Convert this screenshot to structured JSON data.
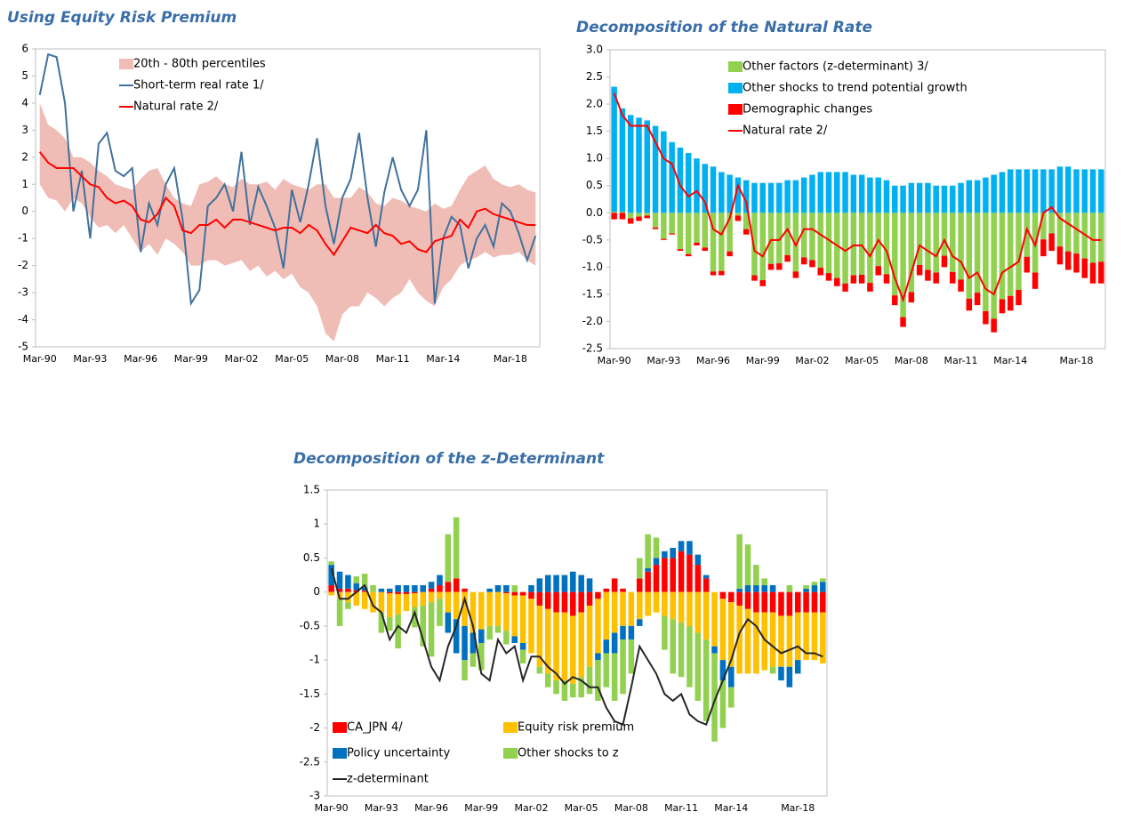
{
  "chart_data": [
    {
      "type": "line",
      "title": "Using Equity Risk Premium",
      "categories": [
        "Mar-90",
        null,
        null,
        null,
        null,
        null,
        "Mar-93",
        null,
        null,
        null,
        null,
        null,
        "Mar-96",
        null,
        null,
        null,
        null,
        null,
        "Mar-99",
        null,
        null,
        null,
        null,
        null,
        "Mar-02",
        null,
        null,
        null,
        null,
        null,
        "Mar-05",
        null,
        null,
        null,
        null,
        null,
        "Mar-08",
        null,
        null,
        null,
        null,
        null,
        "Mar-11",
        null,
        null,
        null,
        null,
        null,
        "Mar-14",
        null,
        null,
        null,
        null,
        null,
        null,
        null,
        "Mar-18",
        null,
        null,
        null
      ],
      "ylim": [
        -5,
        6
      ],
      "yticks": [
        -5,
        -4,
        -3,
        -2,
        -1,
        0,
        1,
        2,
        3,
        4,
        5,
        6
      ],
      "grid": false,
      "series": [
        {
          "name": "20th - 80th percentiles",
          "type": "area",
          "color": "#efbdb6",
          "upper": [
            4.0,
            3.2,
            3.0,
            2.7,
            2.0,
            2.0,
            1.8,
            1.5,
            1.3,
            1.0,
            0.9,
            0.8,
            1.2,
            1.5,
            1.6,
            1.0,
            0.5,
            0.3,
            0.2,
            1.0,
            1.1,
            1.3,
            1.0,
            0.9,
            1.2,
            1.0,
            1.0,
            1.1,
            0.8,
            1.2,
            1.0,
            0.9,
            0.8,
            1.0,
            1.0,
            0.5,
            0.5,
            0.5,
            0.9,
            0.7,
            0.3,
            0.2,
            0.5,
            0.4,
            0.2,
            0.1,
            0.0,
            0.3,
            0.1,
            0.2,
            0.8,
            1.3,
            1.5,
            1.7,
            1.2,
            1.0,
            0.9,
            1.0,
            0.8,
            0.7
          ],
          "lower": [
            1.0,
            0.5,
            0.4,
            0.0,
            0.5,
            0.3,
            -0.2,
            -0.6,
            -0.5,
            -0.8,
            -0.5,
            -1.0,
            -1.5,
            -1.2,
            -1.6,
            -1.0,
            -1.2,
            -1.5,
            -2.0,
            -2.0,
            -1.8,
            -1.8,
            -2.0,
            -1.9,
            -1.8,
            -2.2,
            -2.0,
            -2.4,
            -2.2,
            -2.5,
            -2.3,
            -2.8,
            -3.0,
            -3.5,
            -4.5,
            -4.8,
            -3.8,
            -3.5,
            -3.5,
            -3.0,
            -3.2,
            -3.5,
            -3.2,
            -3.0,
            -2.5,
            -3.0,
            -3.3,
            -3.5,
            -2.8,
            -2.5,
            -2.0,
            -1.8,
            -1.7,
            -1.5,
            -1.7,
            -1.6,
            -1.6,
            -1.5,
            -1.8,
            -2.0
          ]
        },
        {
          "name": "Short-term real rate 1/",
          "type": "line",
          "color": "#41719c",
          "values": [
            4.3,
            5.8,
            5.7,
            4.0,
            0.0,
            1.5,
            -1.0,
            2.5,
            2.9,
            1.5,
            1.3,
            1.6,
            -1.5,
            0.3,
            -0.5,
            1.0,
            1.6,
            -0.3,
            -3.4,
            -2.9,
            0.2,
            0.5,
            1.0,
            0.0,
            2.2,
            -0.5,
            0.9,
            0.2,
            -0.6,
            -2.1,
            0.8,
            -0.4,
            1.0,
            2.7,
            0.2,
            -1.2,
            0.5,
            1.2,
            2.9,
            0.5,
            -1.3,
            0.7,
            2.0,
            0.8,
            0.2,
            0.8,
            3.0,
            -3.4,
            -1.0,
            -0.2,
            -0.5,
            -2.1,
            -1.0,
            -0.5,
            -1.3,
            0.3,
            0.0,
            -0.8,
            -1.8,
            -0.9
          ]
        },
        {
          "name": "Natural rate 2/",
          "type": "line",
          "color": "#ff0000",
          "values": [
            2.2,
            1.8,
            1.6,
            1.6,
            1.6,
            1.3,
            1.0,
            0.9,
            0.5,
            0.3,
            0.4,
            0.2,
            -0.3,
            -0.4,
            -0.1,
            0.5,
            0.2,
            -0.7,
            -0.8,
            -0.5,
            -0.5,
            -0.3,
            -0.6,
            -0.3,
            -0.3,
            -0.4,
            -0.5,
            -0.6,
            -0.7,
            -0.6,
            -0.6,
            -0.8,
            -0.5,
            -0.7,
            -1.2,
            -1.6,
            -1.1,
            -0.6,
            -0.7,
            -0.8,
            -0.5,
            -0.8,
            -0.9,
            -1.2,
            -1.1,
            -1.4,
            -1.5,
            -1.1,
            -1.0,
            -0.9,
            -0.3,
            -0.6,
            0.0,
            0.1,
            -0.1,
            -0.2,
            -0.3,
            -0.4,
            -0.5,
            -0.5
          ]
        }
      ]
    },
    {
      "type": "bar",
      "stacked": true,
      "title": "Decomposition of the Natural Rate",
      "categories": [
        "Mar-90",
        null,
        null,
        null,
        null,
        null,
        "Mar-93",
        null,
        null,
        null,
        null,
        null,
        "Mar-96",
        null,
        null,
        null,
        null,
        null,
        "Mar-99",
        null,
        null,
        null,
        null,
        null,
        "Mar-02",
        null,
        null,
        null,
        null,
        null,
        "Mar-05",
        null,
        null,
        null,
        null,
        null,
        "Mar-08",
        null,
        null,
        null,
        null,
        null,
        "Mar-11",
        null,
        null,
        null,
        null,
        null,
        "Mar-14",
        null,
        null,
        null,
        null,
        null,
        null,
        null,
        "Mar-18",
        null,
        null,
        null
      ],
      "ylim": [
        -2.5,
        3.0
      ],
      "yticks": [
        -2.5,
        {
          "value": -2,
          "label": "-2.0"
        },
        -1.5,
        {
          "value": -1,
          "label": "-1.0"
        },
        -0.5,
        {
          "value": 0,
          "label": "0.0"
        },
        0.5,
        {
          "value": 1,
          "label": "1.0"
        },
        1.5,
        {
          "value": 2,
          "label": "2.0"
        },
        2.5,
        {
          "value": 3,
          "label": "3.0"
        }
      ],
      "grid": false,
      "series": [
        {
          "name": "Other factors (z-determinant) 3/",
          "type": "bar",
          "color": "#92d050",
          "values": [
            0.02,
            0.02,
            -0.1,
            -0.07,
            -0.05,
            -0.27,
            -0.48,
            -0.38,
            -0.67,
            -0.76,
            -0.55,
            -0.64,
            -1.08,
            -1.07,
            -0.71,
            -0.05,
            -0.3,
            -1.15,
            -1.24,
            -0.94,
            -0.93,
            -0.78,
            -1.08,
            -0.82,
            -0.87,
            -1.01,
            -1.11,
            -1.2,
            -1.3,
            -1.15,
            -1.14,
            -1.29,
            -0.98,
            -1.13,
            -1.52,
            -1.92,
            -1.46,
            -0.96,
            -1.05,
            -1.1,
            -0.79,
            -1.09,
            -1.23,
            -1.58,
            -1.47,
            -1.81,
            -1.95,
            -1.59,
            -1.53,
            -1.42,
            -0.81,
            -1.1,
            -0.49,
            -0.38,
            -0.62,
            -0.71,
            -0.75,
            -0.84,
            -0.92,
            -0.9
          ]
        },
        {
          "name": "Other shocks to trend potential growth",
          "type": "bar",
          "color": "#00b0f0",
          "values": [
            2.3,
            1.9,
            1.8,
            1.75,
            1.7,
            1.6,
            1.5,
            1.3,
            1.2,
            1.1,
            1.0,
            0.9,
            0.85,
            0.75,
            0.7,
            0.65,
            0.6,
            0.55,
            0.55,
            0.55,
            0.55,
            0.6,
            0.6,
            0.65,
            0.7,
            0.75,
            0.75,
            0.75,
            0.75,
            0.7,
            0.7,
            0.65,
            0.65,
            0.6,
            0.5,
            0.5,
            0.55,
            0.55,
            0.55,
            0.5,
            0.5,
            0.5,
            0.55,
            0.6,
            0.6,
            0.65,
            0.7,
            0.75,
            0.8,
            0.8,
            0.8,
            0.8,
            0.8,
            0.8,
            0.85,
            0.85,
            0.8,
            0.8,
            0.8,
            0.8
          ]
        },
        {
          "name": "Demographic changes",
          "type": "bar",
          "color": "#ff0000",
          "values": [
            -0.12,
            -0.12,
            -0.1,
            -0.08,
            -0.05,
            -0.03,
            -0.02,
            -0.02,
            -0.03,
            -0.04,
            -0.05,
            -0.06,
            -0.07,
            -0.08,
            -0.09,
            -0.1,
            -0.1,
            -0.1,
            -0.11,
            -0.11,
            -0.12,
            -0.12,
            -0.12,
            -0.13,
            -0.13,
            -0.14,
            -0.14,
            -0.15,
            -0.15,
            -0.15,
            -0.16,
            -0.16,
            -0.17,
            -0.17,
            -0.18,
            -0.18,
            -0.19,
            -0.19,
            -0.2,
            -0.2,
            -0.21,
            -0.21,
            -0.22,
            -0.22,
            -0.23,
            -0.24,
            -0.25,
            -0.26,
            -0.27,
            -0.28,
            -0.29,
            -0.3,
            -0.31,
            -0.32,
            -0.33,
            -0.34,
            -0.35,
            -0.36,
            -0.38,
            -0.4
          ]
        },
        {
          "name": "Natural rate 2/",
          "type": "line",
          "color": "#ff0000",
          "values": [
            2.2,
            1.8,
            1.6,
            1.6,
            1.6,
            1.3,
            1.0,
            0.9,
            0.5,
            0.3,
            0.4,
            0.2,
            -0.3,
            -0.4,
            -0.1,
            0.5,
            0.2,
            -0.7,
            -0.8,
            -0.5,
            -0.5,
            -0.3,
            -0.6,
            -0.3,
            -0.3,
            -0.4,
            -0.5,
            -0.6,
            -0.7,
            -0.6,
            -0.6,
            -0.8,
            -0.5,
            -0.7,
            -1.2,
            -1.6,
            -1.1,
            -0.6,
            -0.7,
            -0.8,
            -0.5,
            -0.8,
            -0.9,
            -1.2,
            -1.1,
            -1.4,
            -1.5,
            -1.1,
            -1.0,
            -0.9,
            -0.3,
            -0.6,
            0.0,
            0.1,
            -0.1,
            -0.2,
            -0.3,
            -0.4,
            -0.5,
            -0.5
          ]
        }
      ]
    },
    {
      "type": "bar",
      "stacked": true,
      "title": "Decomposition of the z-Determinant",
      "categories": [
        "Mar-90",
        null,
        null,
        null,
        null,
        null,
        "Mar-93",
        null,
        null,
        null,
        null,
        null,
        "Mar-96",
        null,
        null,
        null,
        null,
        null,
        "Mar-99",
        null,
        null,
        null,
        null,
        null,
        "Mar-02",
        null,
        null,
        null,
        null,
        null,
        "Mar-05",
        null,
        null,
        null,
        null,
        null,
        "Mar-08",
        null,
        null,
        null,
        null,
        null,
        "Mar-11",
        null,
        null,
        null,
        null,
        null,
        "Mar-14",
        null,
        null,
        null,
        null,
        null,
        null,
        null,
        "Mar-18",
        null,
        null,
        null
      ],
      "ylim": [
        -3,
        1.5
      ],
      "yticks": [
        -3,
        -2.5,
        -2,
        -1.5,
        -1,
        -0.5,
        0,
        0.5,
        1,
        1.5
      ],
      "grid": false,
      "series": [
        {
          "name": "CA_JPN 4/",
          "type": "bar",
          "color": "#ff0000",
          "values": [
            0.1,
            0.05,
            0.05,
            0.03,
            0.02,
            0.0,
            0.0,
            -0.02,
            -0.03,
            -0.03,
            -0.02,
            0.0,
            0.05,
            0.1,
            0.15,
            0.2,
            0.05,
            0.0,
            0.0,
            0.0,
            0.0,
            -0.02,
            -0.05,
            -0.05,
            -0.1,
            -0.2,
            -0.25,
            -0.3,
            -0.3,
            -0.35,
            -0.3,
            -0.2,
            -0.1,
            0.05,
            0.2,
            0.05,
            0.0,
            0.2,
            0.3,
            0.4,
            0.5,
            0.5,
            0.6,
            0.55,
            0.4,
            0.2,
            0.0,
            -0.1,
            -0.15,
            -0.2,
            -0.25,
            -0.3,
            -0.3,
            -0.3,
            -0.35,
            -0.35,
            -0.3,
            -0.3,
            -0.3,
            -0.3
          ]
        },
        {
          "name": "Equity risk premium",
          "type": "bar",
          "color": "#ffc000",
          "values": [
            -0.05,
            -0.1,
            -0.15,
            -0.2,
            -0.25,
            -0.3,
            -0.3,
            -0.35,
            -0.3,
            -0.25,
            -0.2,
            -0.2,
            -0.15,
            -0.1,
            -0.3,
            -0.4,
            -0.5,
            -0.6,
            -0.55,
            -0.5,
            -0.5,
            -0.55,
            -0.6,
            -0.7,
            -0.8,
            -0.9,
            -0.95,
            -1.0,
            -1.0,
            -1.0,
            -0.95,
            -0.9,
            -0.8,
            -0.7,
            -0.6,
            -0.5,
            -0.5,
            -0.4,
            -0.35,
            -0.3,
            -0.35,
            -0.4,
            -0.45,
            -0.5,
            -0.6,
            -0.7,
            -0.8,
            -0.9,
            -0.95,
            -1.0,
            -0.95,
            -0.9,
            -0.85,
            -0.8,
            -0.75,
            -0.75,
            -0.7,
            -0.7,
            -0.7,
            -0.75
          ]
        },
        {
          "name": "Policy uncertainty",
          "type": "bar",
          "color": "#0070c0",
          "values": [
            0.3,
            0.25,
            0.2,
            0.1,
            0.05,
            0.0,
            0.05,
            0.05,
            0.1,
            0.1,
            0.1,
            0.1,
            0.1,
            0.15,
            -0.3,
            -0.5,
            -0.5,
            -0.3,
            -0.2,
            0.05,
            0.1,
            0.1,
            -0.1,
            -0.1,
            0.1,
            0.2,
            0.25,
            0.25,
            0.25,
            0.3,
            0.25,
            0.2,
            -0.1,
            -0.2,
            -0.3,
            -0.2,
            -0.2,
            -0.1,
            0.05,
            0.1,
            0.1,
            0.15,
            0.15,
            0.2,
            0.15,
            0.05,
            -0.1,
            -0.3,
            -0.3,
            0.05,
            0.1,
            0.1,
            0.1,
            0.1,
            -0.2,
            -0.3,
            -0.2,
            0.05,
            0.1,
            0.15
          ]
        },
        {
          "name": "Other shocks to z",
          "type": "bar",
          "color": "#92d050",
          "values": [
            0.05,
            -0.4,
            -0.1,
            0.1,
            0.2,
            0.1,
            -0.3,
            -0.2,
            -0.5,
            0.0,
            -0.3,
            -0.6,
            -0.8,
            -0.4,
            0.7,
            0.9,
            -0.3,
            -0.2,
            -0.4,
            -0.2,
            -0.1,
            -0.2,
            0.1,
            -0.2,
            0.0,
            -0.1,
            -0.2,
            -0.2,
            -0.3,
            -0.2,
            -0.3,
            -0.4,
            -0.6,
            -0.5,
            -0.7,
            -0.8,
            -0.5,
            0.3,
            0.5,
            0.3,
            -0.5,
            -0.8,
            -0.8,
            -0.9,
            -1.0,
            -1.2,
            -1.3,
            -0.7,
            -0.3,
            0.8,
            0.6,
            0.3,
            0.1,
            -0.1,
            0.0,
            0.1,
            0.0,
            0.05,
            0.05,
            0.05
          ]
        },
        {
          "name": "z-determinant",
          "type": "line",
          "color": "#262626",
          "values": [
            0.35,
            -0.1,
            -0.1,
            0.0,
            0.1,
            -0.2,
            -0.3,
            -0.7,
            -0.5,
            -0.6,
            -0.3,
            -0.7,
            -1.1,
            -1.3,
            -0.8,
            -0.5,
            -0.1,
            -0.5,
            -1.2,
            -1.3,
            -0.7,
            -0.9,
            -0.8,
            -1.3,
            -0.95,
            -0.95,
            -1.1,
            -1.2,
            -1.35,
            -1.25,
            -1.3,
            -1.4,
            -1.4,
            -1.7,
            -1.9,
            -1.95,
            -1.4,
            -0.8,
            -1.0,
            -1.2,
            -1.5,
            -1.6,
            -1.5,
            -1.8,
            -1.9,
            -1.95,
            -1.6,
            -1.3,
            -1.0,
            -0.6,
            -0.4,
            -0.5,
            -0.7,
            -0.8,
            -0.9,
            -0.85,
            -0.8,
            -0.9,
            -0.9,
            -0.95
          ]
        }
      ]
    }
  ]
}
